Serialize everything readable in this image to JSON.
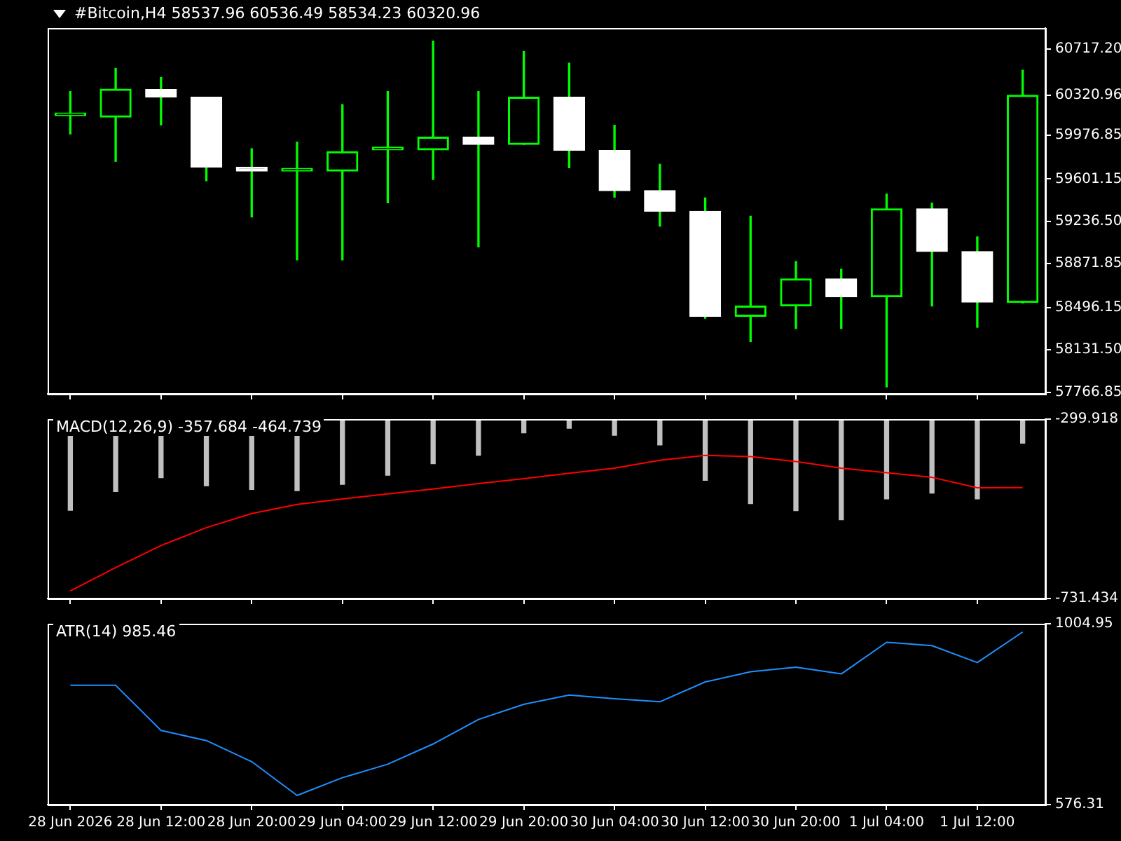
{
  "chart_data": [
    {
      "type": "candlestick",
      "title": "#Bitcoin,H4  58537.96 60536.49 58534.23 60320.96",
      "tick_labels": "y",
      "color": "#00ff00",
      "ohlc": [
        [
          60145,
          60353,
          59988,
          60145
        ],
        [
          60133,
          60553,
          59753,
          60375
        ],
        [
          60372,
          60475,
          60066,
          60305
        ],
        [
          60305,
          60305,
          59586,
          59702
        ],
        [
          59702,
          59862,
          59274,
          59669
        ],
        [
          59669,
          59918,
          58905,
          59669
        ],
        [
          59669,
          60241,
          58905,
          59836
        ],
        [
          59851,
          60353,
          59396,
          59851
        ],
        [
          59851,
          60788,
          59597,
          59962
        ],
        [
          59962,
          60353,
          59017,
          59899
        ],
        [
          59899,
          60699,
          59899,
          60305
        ],
        [
          60305,
          60598,
          59698,
          59847
        ],
        [
          59847,
          60063,
          59445,
          59501
        ],
        [
          59501,
          59728,
          59195,
          59323
        ],
        [
          59323,
          59438,
          58403,
          58419
        ],
        [
          58419,
          59281,
          58202,
          58508
        ],
        [
          58508,
          58891,
          58314,
          58742
        ],
        [
          58742,
          58824,
          58314,
          58586
        ],
        [
          58586,
          59471,
          57812,
          59345
        ],
        [
          59345,
          59393,
          58508,
          58977
        ],
        [
          58977,
          59103,
          58325,
          58542
        ],
        [
          58537.96,
          60536.49,
          58534.23,
          60320.96
        ]
      ],
      "colors": [
        "#00ff00",
        "#00ff00",
        "#ffffff",
        "#ffffff",
        "#ffffff",
        "#00ff00",
        "#00ff00",
        "#00ff00",
        "#00ff00",
        "#ffffff",
        "#00ff00",
        "#ffffff",
        "#ffffff",
        "#ffffff",
        "#ffffff",
        "#00ff00",
        "#00ff00",
        "#ffffff",
        "#00ff00",
        "#ffffff",
        "#ffffff",
        "#00ff00"
      ],
      "ylim": [
        57752,
        60900
      ],
      "yticks": [
        {
          "value": 60717.2,
          "label": "60717.20"
        },
        60320.96,
        59976.85,
        59601.15,
        {
          "value": 59236.5,
          "label": "59236.50"
        },
        58871.85,
        58496.15,
        {
          "value": 58131.5,
          "label": "58131.50"
        },
        57766.85
      ]
    },
    {
      "type": "bar",
      "title": "MACD(12,26,9) -357.684 -464.739",
      "tick_labels": "y",
      "series": [
        {
          "type": "bar",
          "color": "#c0c0c0",
          "values": [
            -519,
            -474,
            -441,
            -460,
            -469,
            -472,
            -457,
            -435,
            -407,
            -387,
            -333,
            -322,
            -339,
            -362,
            -447,
            -503,
            -520,
            -542,
            -492,
            -478,
            -492,
            -357.684
          ]
        },
        {
          "type": "line",
          "color": "#ff0000",
          "values": [
            -713,
            -657,
            -604,
            -561,
            -527,
            -505,
            -492,
            -480,
            -468,
            -455,
            -443,
            -430,
            -418,
            -399,
            -387,
            -390,
            -402,
            -418,
            -429,
            -440,
            -465,
            -464.739
          ]
        }
      ],
      "ylim": [
        -731.434,
        -299.918
      ],
      "yticks": [
        -299.918,
        -731.434
      ]
    },
    {
      "type": "line",
      "title": "ATR(14) 985.46",
      "categories": [
        "28 Jun 2026",
        null,
        "28 Jun 12:00",
        null,
        "28 Jun 20:00",
        null,
        "29 Jun 04:00",
        null,
        "29 Jun 12:00",
        null,
        "29 Jun 20:00",
        null,
        "30 Jun 04:00",
        null,
        "30 Jun 12:00",
        null,
        "30 Jun 20:00",
        null,
        "1 Jul 04:00",
        null,
        "1 Jul 12:00",
        null
      ],
      "series": [
        {
          "color": "#1e90ff",
          "values": [
            859,
            859,
            752,
            728,
            678,
            598,
            640,
            672,
            720,
            778,
            814,
            836,
            827,
            820,
            867,
            891,
            902,
            886,
            961,
            953,
            913,
            985.46
          ]
        }
      ],
      "ylim": [
        576.31,
        1004.95
      ],
      "yticks": [
        1004.95,
        576.31
      ]
    }
  ]
}
